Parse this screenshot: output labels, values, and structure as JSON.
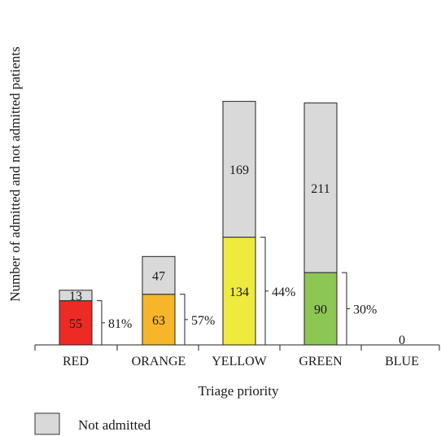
{
  "chart_data": {
    "type": "bar",
    "stacked": true,
    "xlabel": "Triage priority",
    "ylabel": "Number of admitted and not admitted patients",
    "categories": [
      "RED",
      "ORANGE",
      "YELLOW",
      "GREEN",
      "BLUE"
    ],
    "series": [
      {
        "values": [
          55,
          63,
          134,
          90,
          0
        ],
        "colors": [
          "#ee2a24",
          "#f7b52a",
          "#eeea3e",
          "#8cc654",
          "#4a7fd0"
        ]
      },
      {
        "name": "Not admitted",
        "values": [
          13,
          47,
          169,
          211,
          0
        ],
        "color": "#d9d9d9"
      }
    ],
    "percent_labels": [
      "81%",
      "57%",
      "44%",
      "30%",
      ""
    ],
    "total_labels": [
      "",
      "",
      "",
      "",
      "0"
    ],
    "ylim": [
      0,
      410
    ],
    "grid": false,
    "legend": {
      "placement": "bottom-left",
      "entries": [
        {
          "label": "Not admitted",
          "color": "#d9d9d9"
        }
      ]
    }
  }
}
